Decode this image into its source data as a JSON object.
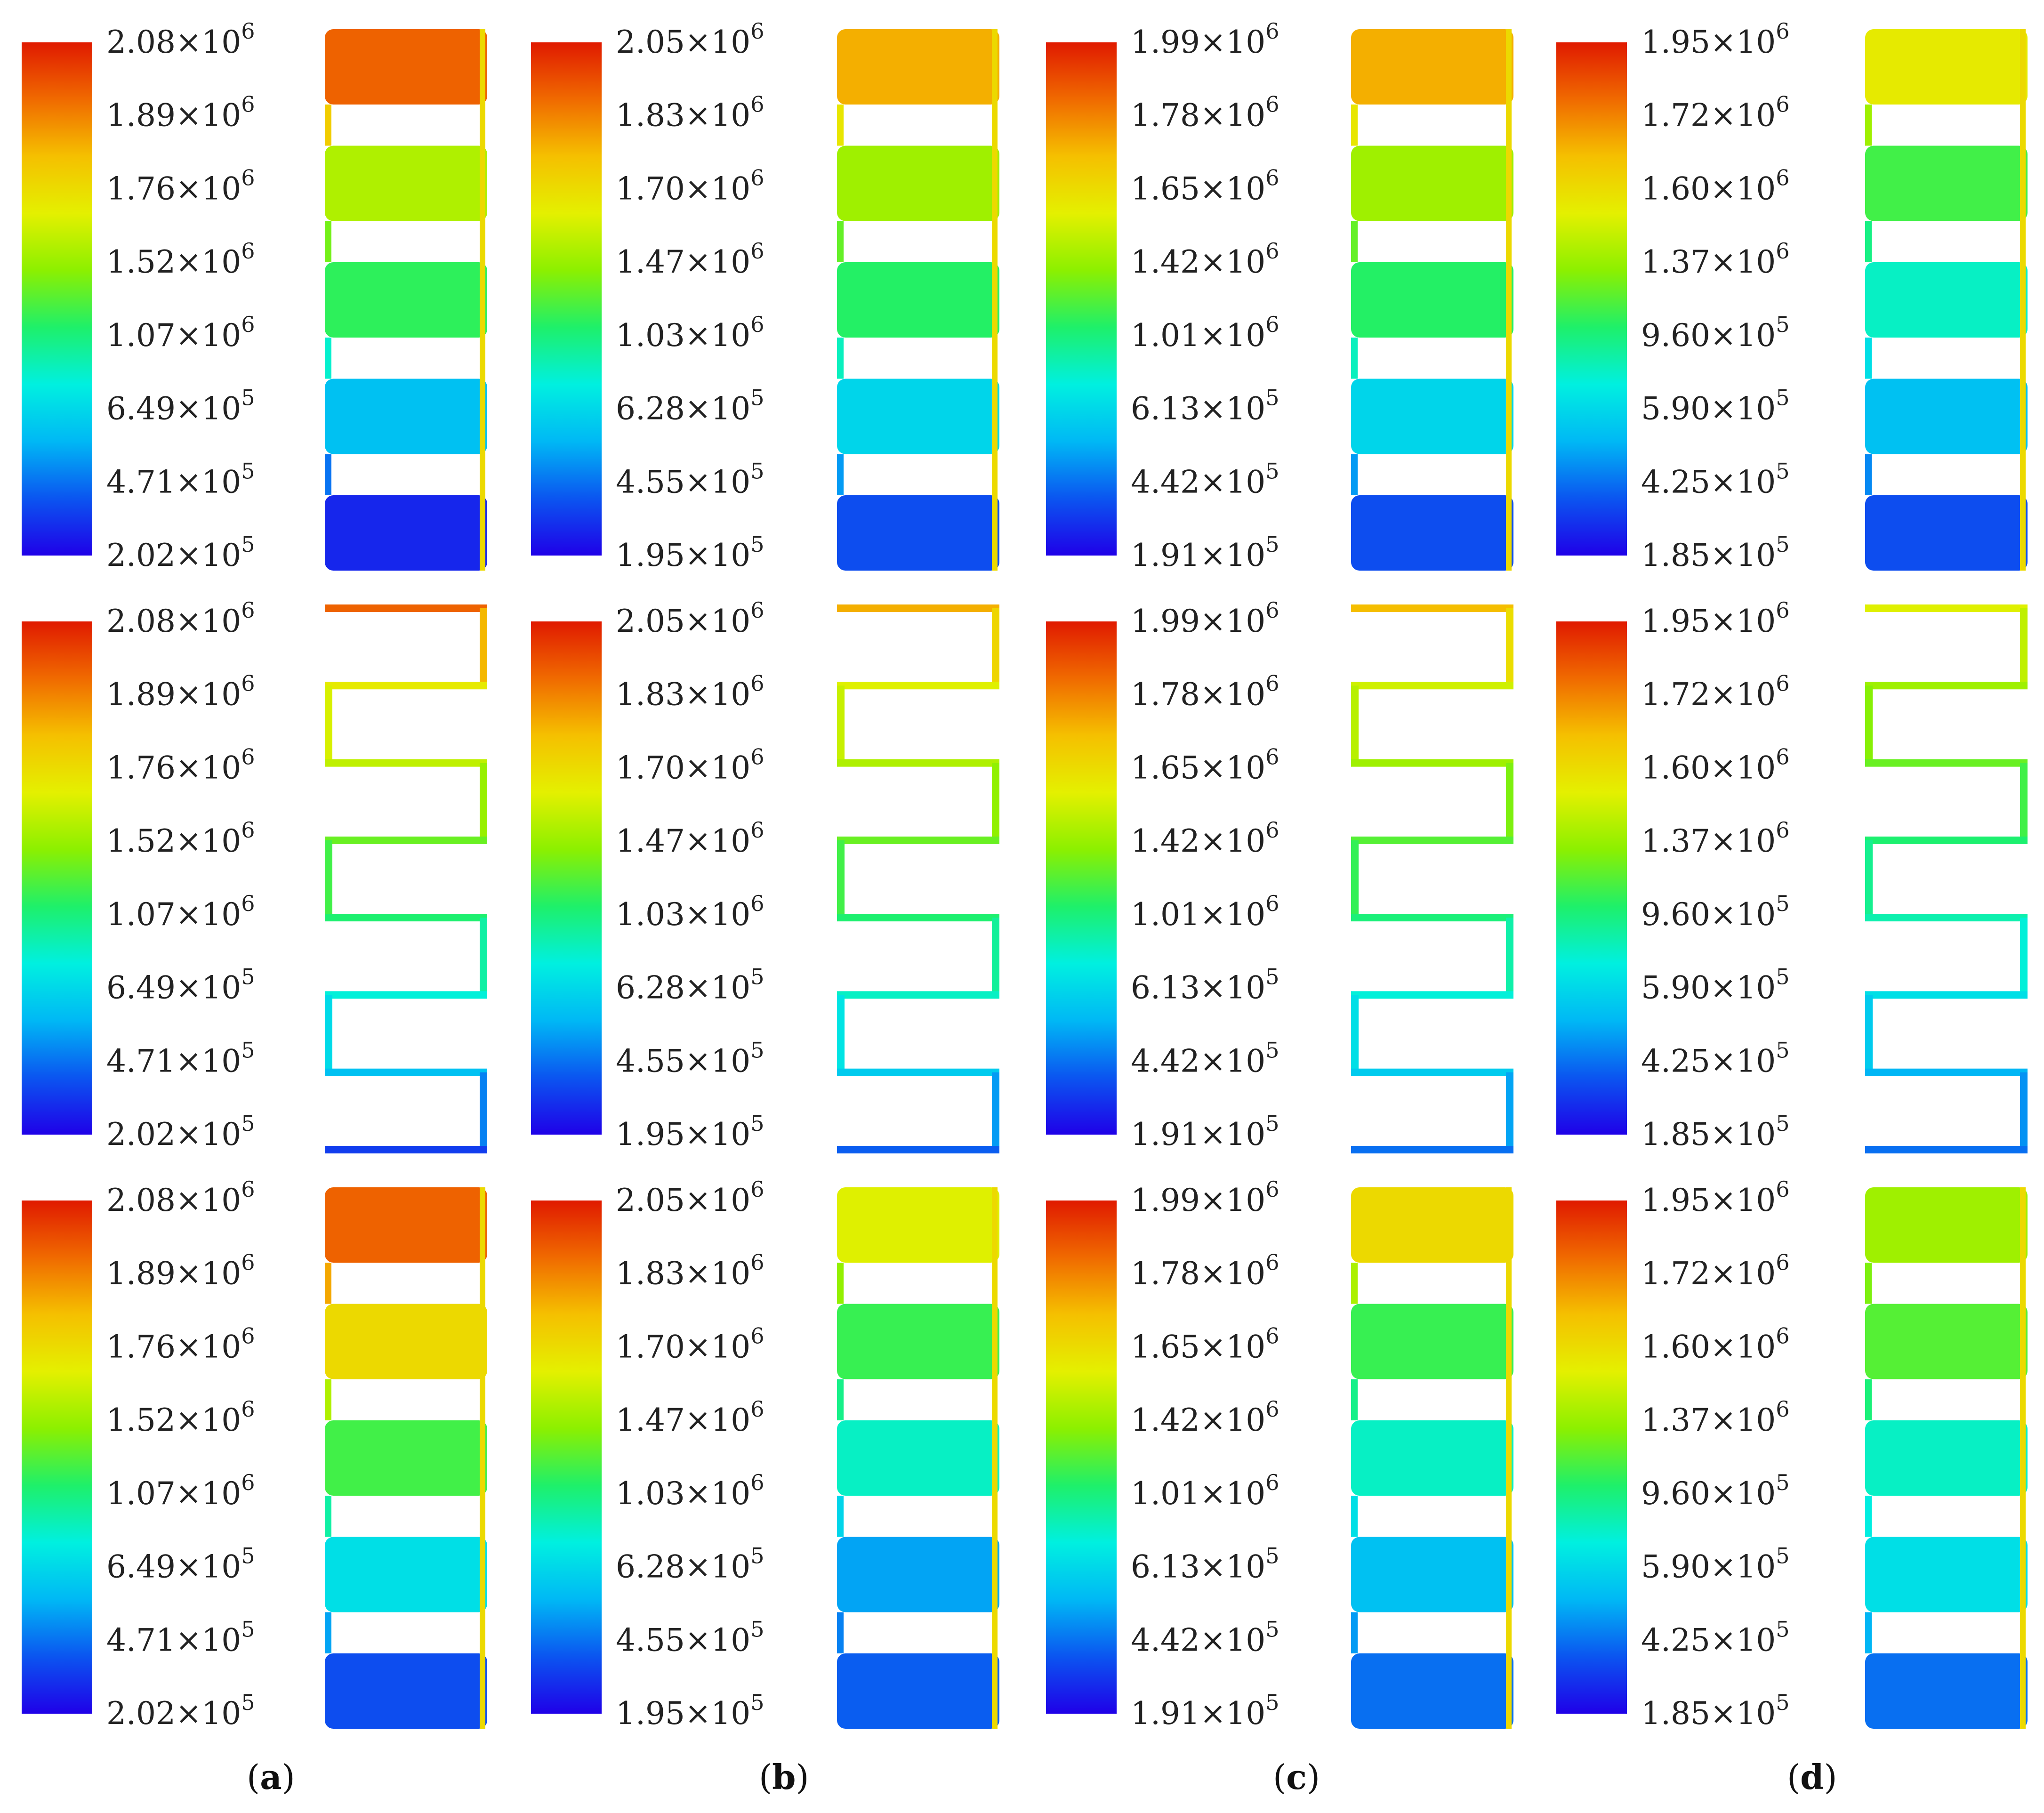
{
  "colormap": {
    "stops": [
      "#1f00e8",
      "#0b55f0",
      "#00b8f5",
      "#00f0e0",
      "#1ef06a",
      "#8cf000",
      "#e4f000",
      "#f5c000",
      "#f06a00",
      "#e01a00"
    ]
  },
  "columns": [
    {
      "caption": "a",
      "ticks": [
        {
          "mant": "2.08",
          "exp": "6"
        },
        {
          "mant": "1.89",
          "exp": "6"
        },
        {
          "mant": "1.76",
          "exp": "6"
        },
        {
          "mant": "1.52",
          "exp": "6"
        },
        {
          "mant": "1.07",
          "exp": "6"
        },
        {
          "mant": "6.49",
          "exp": "5"
        },
        {
          "mant": "4.71",
          "exp": "5"
        },
        {
          "mant": "2.02",
          "exp": "5"
        }
      ],
      "rows": [
        {
          "bands": [
            0.9,
            0.6,
            0.46,
            0.24,
            0.05
          ]
        },
        {
          "path": [
            0.9,
            0.68,
            0.62,
            0.52,
            0.44,
            0.34,
            0.24,
            0.08
          ]
        },
        {
          "bands": [
            0.9,
            0.72,
            0.48,
            0.3,
            0.1
          ]
        }
      ]
    },
    {
      "caption": "b",
      "ticks": [
        {
          "mant": "2.05",
          "exp": "6"
        },
        {
          "mant": "1.83",
          "exp": "6"
        },
        {
          "mant": "1.70",
          "exp": "6"
        },
        {
          "mant": "1.47",
          "exp": "6"
        },
        {
          "mant": "1.03",
          "exp": "6"
        },
        {
          "mant": "6.28",
          "exp": "5"
        },
        {
          "mant": "4.55",
          "exp": "5"
        },
        {
          "mant": "1.95",
          "exp": "5"
        }
      ],
      "rows": [
        {
          "bands": [
            0.8,
            0.58,
            0.45,
            0.28,
            0.1
          ]
        },
        {
          "path": [
            0.8,
            0.66,
            0.6,
            0.52,
            0.44,
            0.36,
            0.26,
            0.12
          ]
        },
        {
          "bands": [
            0.66,
            0.47,
            0.36,
            0.2,
            0.12
          ]
        }
      ]
    },
    {
      "caption": "c",
      "ticks": [
        {
          "mant": "1.99",
          "exp": "6"
        },
        {
          "mant": "1.78",
          "exp": "6"
        },
        {
          "mant": "1.65",
          "exp": "6"
        },
        {
          "mant": "1.42",
          "exp": "6"
        },
        {
          "mant": "1.01",
          "exp": "6"
        },
        {
          "mant": "6.13",
          "exp": "5"
        },
        {
          "mant": "4.42",
          "exp": "5"
        },
        {
          "mant": "1.91",
          "exp": "5"
        }
      ],
      "rows": [
        {
          "bands": [
            0.8,
            0.58,
            0.45,
            0.28,
            0.1
          ]
        },
        {
          "path": [
            0.78,
            0.64,
            0.58,
            0.5,
            0.43,
            0.34,
            0.26,
            0.14
          ]
        },
        {
          "bands": [
            0.72,
            0.47,
            0.36,
            0.24,
            0.14
          ]
        }
      ]
    },
    {
      "caption": "d",
      "ticks": [
        {
          "mant": "1.95",
          "exp": "6"
        },
        {
          "mant": "1.72",
          "exp": "6"
        },
        {
          "mant": "1.60",
          "exp": "6"
        },
        {
          "mant": "1.37",
          "exp": "6"
        },
        {
          "mant": "9.60",
          "exp": "5"
        },
        {
          "mant": "5.90",
          "exp": "5"
        },
        {
          "mant": "4.25",
          "exp": "5"
        },
        {
          "mant": "1.85",
          "exp": "5"
        }
      ],
      "rows": [
        {
          "bands": [
            0.68,
            0.48,
            0.36,
            0.24,
            0.1
          ]
        },
        {
          "path": [
            0.66,
            0.58,
            0.52,
            0.44,
            0.38,
            0.3,
            0.22,
            0.14
          ]
        },
        {
          "bands": [
            0.58,
            0.5,
            0.36,
            0.3,
            0.14
          ]
        }
      ]
    }
  ]
}
